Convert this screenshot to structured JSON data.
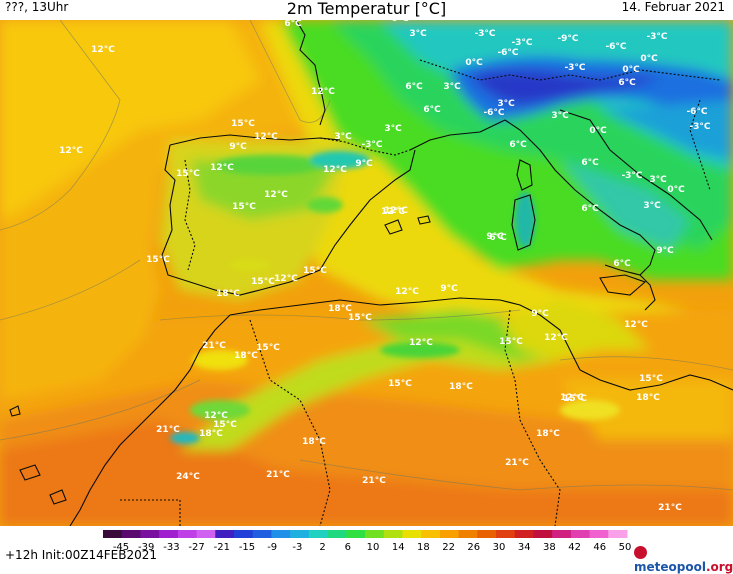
{
  "header": {
    "left": "???, 13Uhr",
    "title": "2m Temperatur [°C]",
    "date": "14. Februar 2021"
  },
  "footer": {
    "init": "+12h  Init:00Z14FEB2021",
    "brand_main": "meteopool",
    "brand_tld": ".org"
  },
  "colorscale": {
    "ticks": [
      "-45",
      "-39",
      "-33",
      "-27",
      "-21",
      "-15",
      "-9",
      "-3",
      "2",
      "6",
      "10",
      "14",
      "18",
      "22",
      "26",
      "30",
      "34",
      "38",
      "42",
      "46",
      "50"
    ],
    "colors": [
      "#3a0a3a",
      "#5a0a6e",
      "#7a10a0",
      "#a020d0",
      "#c040e8",
      "#d060f0",
      "#4020c0",
      "#2040d8",
      "#2060e0",
      "#2090e8",
      "#20b0e0",
      "#20d0c0",
      "#20d880",
      "#30e040",
      "#70e020",
      "#b0e010",
      "#e8e000",
      "#f8c000",
      "#f8a000",
      "#f08000",
      "#e86000",
      "#e04010",
      "#d02020",
      "#c01040",
      "#d02080",
      "#e040b0",
      "#f060d0",
      "#f8a0e8"
    ]
  },
  "temperature_labels": [
    {
      "t": "0°C"
    },
    {
      "t": "6°C"
    },
    {
      "t": "3°C"
    },
    {
      "t": "-3°C"
    },
    {
      "t": "-3°C"
    },
    {
      "t": "-9°C"
    },
    {
      "t": "-6°C"
    },
    {
      "t": "-3°C"
    },
    {
      "t": "12°C"
    },
    {
      "t": "0°C"
    },
    {
      "t": "-6°C"
    },
    {
      "t": "-3°C"
    },
    {
      "t": "0°C"
    },
    {
      "t": "0°C"
    },
    {
      "t": "6°C"
    },
    {
      "t": "3°C"
    },
    {
      "t": "12°C"
    },
    {
      "t": "6°C"
    },
    {
      "t": "6°C"
    },
    {
      "t": "-6°C"
    },
    {
      "t": "3°C"
    },
    {
      "t": "3°C"
    },
    {
      "t": "-6°C"
    },
    {
      "t": "-3°C"
    },
    {
      "t": "15°C"
    },
    {
      "t": "12°C"
    },
    {
      "t": "3°C"
    },
    {
      "t": "0°C"
    },
    {
      "t": "3°C"
    },
    {
      "t": "12°C"
    },
    {
      "t": "9°C"
    },
    {
      "t": "6°C"
    },
    {
      "t": "-3°C"
    },
    {
      "t": "6°C"
    },
    {
      "t": "12°C"
    },
    {
      "t": "9°C"
    },
    {
      "t": "6°C"
    },
    {
      "t": "-3°C"
    },
    {
      "t": "3°C"
    },
    {
      "t": "15°C"
    },
    {
      "t": "12°C"
    },
    {
      "t": "0°C"
    },
    {
      "t": "12°C"
    },
    {
      "t": "12°C"
    },
    {
      "t": "15°C"
    },
    {
      "t": "3°C"
    },
    {
      "t": "6°C"
    },
    {
      "t": "12°C"
    },
    {
      "t": "9°C"
    },
    {
      "t": "15°C"
    },
    {
      "t": "6°C"
    },
    {
      "t": "9°C"
    },
    {
      "t": "15°C"
    },
    {
      "t": "12°C"
    },
    {
      "t": "15°C"
    },
    {
      "t": "18°C"
    },
    {
      "t": "12°C"
    },
    {
      "t": "9°C"
    },
    {
      "t": "18°C"
    },
    {
      "t": "15°C"
    },
    {
      "t": "9°C"
    },
    {
      "t": "21°C"
    },
    {
      "t": "15°C"
    },
    {
      "t": "12°C"
    },
    {
      "t": "15°C"
    },
    {
      "t": "12°C"
    },
    {
      "t": "12°C"
    },
    {
      "t": "18°C"
    },
    {
      "t": "15°C"
    },
    {
      "t": "18°C"
    },
    {
      "t": "15°C"
    },
    {
      "t": "12°C"
    },
    {
      "t": "15°C"
    },
    {
      "t": "21°C"
    },
    {
      "t": "12°C"
    },
    {
      "t": "18°C"
    },
    {
      "t": "15°C"
    },
    {
      "t": "18°C"
    },
    {
      "t": "18°C"
    },
    {
      "t": "21°C"
    },
    {
      "t": "18°C"
    },
    {
      "t": "24°C"
    },
    {
      "t": "21°C"
    },
    {
      "t": "21°C"
    },
    {
      "t": "21°C"
    }
  ]
}
